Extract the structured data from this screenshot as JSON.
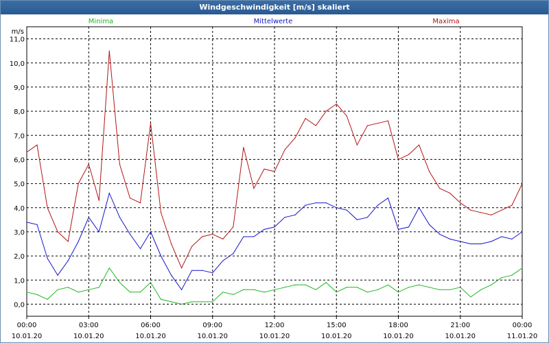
{
  "window": {
    "title": "Windgeschwindigkeit [m/s] skaliert"
  },
  "chart_data": {
    "type": "line",
    "title": "Windgeschwindigkeit [m/s] skaliert",
    "ylabel": "m/s",
    "xlabel": "",
    "ylim": [
      -0.5,
      11.5
    ],
    "xlim": [
      0,
      24
    ],
    "grid": true,
    "y_ticks": [
      0,
      1,
      2,
      3,
      4,
      5,
      6,
      7,
      8,
      9,
      10,
      11
    ],
    "y_tick_labels": [
      "0,0",
      "1,0",
      "2,0",
      "3,0",
      "4,0",
      "5,0",
      "6,0",
      "7,0",
      "8,0",
      "9,0",
      "10,0",
      "11,0"
    ],
    "x_ticks": [
      {
        "x": 0,
        "time": "00:00",
        "date": "10.01.20"
      },
      {
        "x": 3,
        "time": "03:00",
        "date": "10.01.20"
      },
      {
        "x": 6,
        "time": "06:00",
        "date": "10.01.20"
      },
      {
        "x": 9,
        "time": "09:00",
        "date": "10.01.20"
      },
      {
        "x": 12,
        "time": "12:00",
        "date": "10.01.20"
      },
      {
        "x": 15,
        "time": "15:00",
        "date": "10.01.20"
      },
      {
        "x": 18,
        "time": "18:00",
        "date": "10.01.20"
      },
      {
        "x": 21,
        "time": "21:00",
        "date": "10.01.20"
      },
      {
        "x": 24,
        "time": "00:00",
        "date": "11.01.20"
      }
    ],
    "x": [
      0,
      0.5,
      1,
      1.5,
      2,
      2.5,
      3,
      3.5,
      4,
      4.5,
      5,
      5.5,
      6,
      6.5,
      7,
      7.5,
      8,
      8.5,
      9,
      9.5,
      10,
      10.5,
      11,
      11.5,
      12,
      12.5,
      13,
      13.5,
      14,
      14.5,
      15,
      15.5,
      16,
      16.5,
      17,
      17.5,
      18,
      18.5,
      19,
      19.5,
      20,
      20.5,
      21,
      21.5,
      22,
      22.5,
      23,
      23.5,
      24
    ],
    "series": [
      {
        "name": "Minima",
        "color": "#1fb51f",
        "values": [
          0.5,
          0.4,
          0.2,
          0.6,
          0.7,
          0.5,
          0.6,
          0.7,
          1.5,
          0.9,
          0.5,
          0.5,
          0.9,
          0.2,
          0.1,
          0.0,
          0.1,
          0.1,
          0.1,
          0.5,
          0.4,
          0.6,
          0.6,
          0.5,
          0.6,
          0.7,
          0.8,
          0.8,
          0.6,
          0.9,
          0.5,
          0.7,
          0.7,
          0.5,
          0.6,
          0.8,
          0.5,
          0.7,
          0.8,
          0.7,
          0.6,
          0.6,
          0.7,
          0.3,
          0.6,
          0.8,
          1.1,
          1.2,
          1.5
        ]
      },
      {
        "name": "Mittelwerte",
        "color": "#1414c8",
        "values": [
          3.4,
          3.3,
          1.9,
          1.2,
          1.8,
          2.6,
          3.6,
          3.0,
          4.6,
          3.6,
          2.9,
          2.3,
          3.0,
          2.0,
          1.2,
          0.6,
          1.4,
          1.4,
          1.3,
          1.8,
          2.1,
          2.8,
          2.8,
          3.1,
          3.2,
          3.6,
          3.7,
          4.1,
          4.2,
          4.2,
          4.0,
          3.9,
          3.5,
          3.6,
          4.1,
          4.4,
          3.1,
          3.2,
          4.0,
          3.3,
          2.9,
          2.7,
          2.6,
          2.5,
          2.5,
          2.6,
          2.8,
          2.7,
          3.0
        ]
      },
      {
        "name": "Maxima",
        "color": "#b41414",
        "values": [
          6.3,
          6.6,
          4.0,
          3.0,
          2.6,
          5.0,
          5.8,
          4.3,
          10.5,
          5.8,
          4.4,
          4.2,
          7.5,
          3.8,
          2.5,
          1.5,
          2.4,
          2.8,
          2.9,
          2.7,
          3.2,
          6.5,
          4.8,
          5.6,
          5.5,
          6.4,
          6.9,
          7.7,
          7.4,
          8.0,
          8.3,
          7.8,
          6.6,
          7.4,
          7.5,
          7.6,
          6.0,
          6.2,
          6.6,
          5.5,
          4.8,
          4.6,
          4.2,
          3.9,
          3.8,
          3.7,
          3.9,
          4.1,
          5.0
        ]
      }
    ],
    "legend": "top"
  }
}
